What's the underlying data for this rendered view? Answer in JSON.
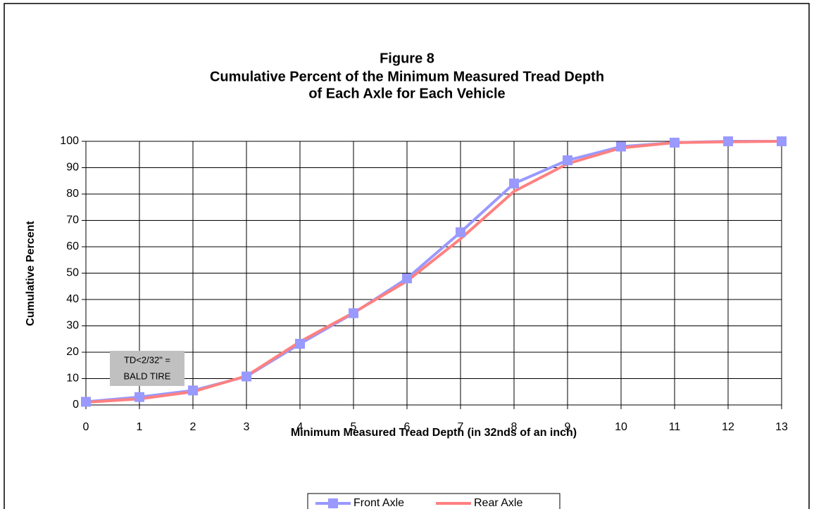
{
  "chart_data": {
    "type": "line",
    "title": [
      "Figure 8",
      "Cumulative Percent of the Minimum Measured Tread Depth",
      "of Each Axle for Each Vehicle"
    ],
    "x_label": "Minimum Measured Tread Depth (in 32nds of an inch)",
    "y_label": "Cumulative Percent",
    "annotation": [
      "TD<2/32\" =",
      "BALD TIRE"
    ],
    "x": [
      0,
      1,
      2,
      3,
      4,
      5,
      6,
      7,
      8,
      9,
      10,
      11,
      12,
      13
    ],
    "series": [
      {
        "name": "Front Axle",
        "color": "#9999ff",
        "marker": "square",
        "values": [
          1.2,
          3,
          5.5,
          10.8,
          23.2,
          34.8,
          48,
          65.5,
          84,
          92.8,
          98,
          99.5,
          100,
          100
        ]
      },
      {
        "name": "Rear Axle",
        "color": "#ff8080",
        "values": [
          1,
          2.3,
          5,
          11,
          24,
          35,
          47,
          63,
          81,
          91.5,
          97.5,
          99.5,
          99.8,
          100
        ]
      }
    ],
    "xlim": [
      0,
      13
    ],
    "xticks": [
      0,
      1,
      2,
      3,
      4,
      5,
      6,
      7,
      8,
      9,
      10,
      11,
      12,
      13
    ],
    "ylim": [
      0,
      100
    ],
    "yticks": [
      0,
      10,
      20,
      30,
      40,
      50,
      60,
      70,
      80,
      90,
      100
    ],
    "grid": true,
    "legend": "bottom"
  }
}
